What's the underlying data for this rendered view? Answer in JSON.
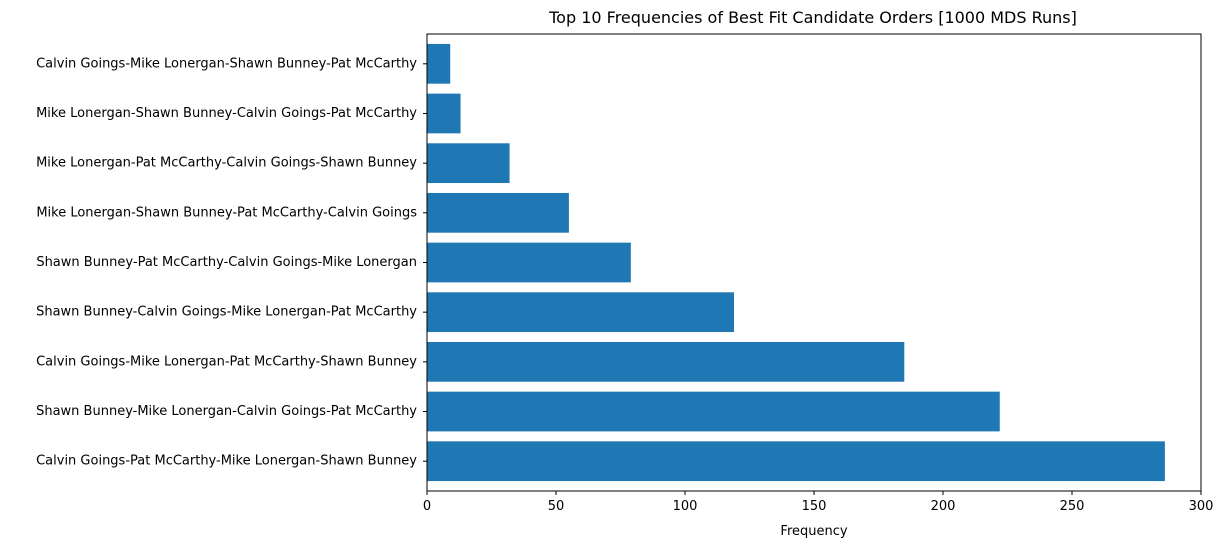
{
  "chart_data": {
    "type": "bar",
    "orientation": "horizontal",
    "title": "Top 10 Frequencies of Best Fit Candidate Orders [1000 MDS Runs]",
    "xlabel": "Frequency",
    "ylabel": "",
    "xlim": [
      0,
      300
    ],
    "xticks": [
      0,
      50,
      100,
      150,
      200,
      250,
      300
    ],
    "grid": false,
    "color": "#1f77b4",
    "categories": [
      "Calvin Goings-Pat McCarthy-Mike Lonergan-Shawn Bunney",
      "Shawn Bunney-Mike Lonergan-Calvin Goings-Pat McCarthy",
      "Calvin Goings-Mike Lonergan-Pat McCarthy-Shawn Bunney",
      "Shawn Bunney-Calvin Goings-Mike Lonergan-Pat McCarthy",
      "Shawn Bunney-Pat McCarthy-Calvin Goings-Mike Lonergan",
      "Mike Lonergan-Shawn Bunney-Pat McCarthy-Calvin Goings",
      "Mike Lonergan-Pat McCarthy-Calvin Goings-Shawn Bunney",
      "Mike Lonergan-Shawn Bunney-Calvin Goings-Pat McCarthy",
      "Calvin Goings-Mike Lonergan-Shawn Bunney-Pat McCarthy"
    ],
    "values": [
      286,
      222,
      185,
      119,
      79,
      55,
      32,
      13,
      9
    ]
  }
}
